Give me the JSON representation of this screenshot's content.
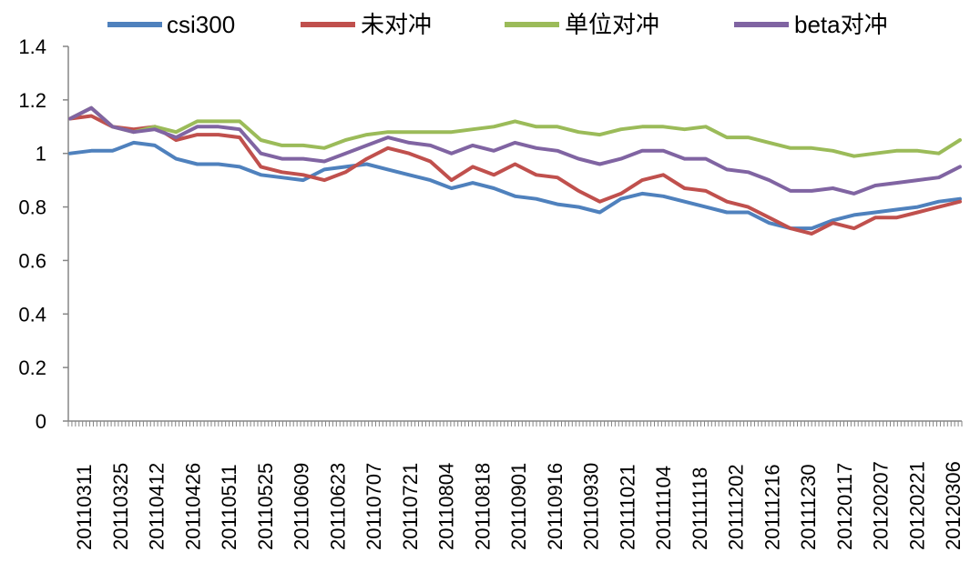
{
  "chart_data": {
    "type": "line",
    "x_tick_labels": [
      "20110311",
      "20110325",
      "20110412",
      "20110426",
      "20110511",
      "20110525",
      "20110609",
      "20110623",
      "20110707",
      "20110721",
      "20110804",
      "20110818",
      "20110901",
      "20110916",
      "20110930",
      "20111021",
      "20111104",
      "20111118",
      "20111202",
      "20111216",
      "20111230",
      "20120117",
      "20120207",
      "20120221",
      "20120306"
    ],
    "ylim": [
      0,
      1.4
    ],
    "y_ticks": [
      "0",
      "0.2",
      "0.4",
      "0.6",
      "0.8",
      "1",
      "1.2",
      "1.4"
    ],
    "legend_position": "top",
    "grid": false,
    "series": [
      {
        "name": "csi300",
        "color": "#4F81BD",
        "values": [
          1.0,
          1.01,
          1.01,
          1.04,
          1.03,
          0.98,
          0.96,
          0.96,
          0.95,
          0.92,
          0.91,
          0.9,
          0.94,
          0.95,
          0.96,
          0.94,
          0.92,
          0.9,
          0.87,
          0.89,
          0.87,
          0.84,
          0.83,
          0.81,
          0.8,
          0.78,
          0.83,
          0.85,
          0.84,
          0.82,
          0.8,
          0.78,
          0.78,
          0.74,
          0.72,
          0.72,
          0.75,
          0.77,
          0.78,
          0.79,
          0.8,
          0.82,
          0.83
        ]
      },
      {
        "name": "未对冲",
        "color": "#C0504D",
        "values": [
          1.13,
          1.14,
          1.1,
          1.09,
          1.1,
          1.05,
          1.07,
          1.07,
          1.06,
          0.95,
          0.93,
          0.92,
          0.9,
          0.93,
          0.98,
          1.02,
          1.0,
          0.97,
          0.9,
          0.95,
          0.92,
          0.96,
          0.92,
          0.91,
          0.86,
          0.82,
          0.85,
          0.9,
          0.92,
          0.87,
          0.86,
          0.82,
          0.8,
          0.76,
          0.72,
          0.7,
          0.74,
          0.72,
          0.76,
          0.76,
          0.78,
          0.8,
          0.82
        ]
      },
      {
        "name": "单位对冲",
        "color": "#9BBB59",
        "values": [
          1.13,
          1.17,
          1.1,
          1.08,
          1.1,
          1.08,
          1.12,
          1.12,
          1.12,
          1.05,
          1.03,
          1.03,
          1.02,
          1.05,
          1.07,
          1.08,
          1.08,
          1.08,
          1.08,
          1.09,
          1.1,
          1.12,
          1.1,
          1.1,
          1.08,
          1.07,
          1.09,
          1.1,
          1.1,
          1.09,
          1.1,
          1.06,
          1.06,
          1.04,
          1.02,
          1.02,
          1.01,
          0.99,
          1.0,
          1.01,
          1.01,
          1.0,
          1.05
        ]
      },
      {
        "name": "beta对冲",
        "color": "#8064A2",
        "values": [
          1.13,
          1.17,
          1.1,
          1.08,
          1.09,
          1.06,
          1.1,
          1.1,
          1.09,
          1.0,
          0.98,
          0.98,
          0.97,
          1.0,
          1.03,
          1.06,
          1.04,
          1.03,
          1.0,
          1.03,
          1.01,
          1.04,
          1.02,
          1.01,
          0.98,
          0.96,
          0.98,
          1.01,
          1.01,
          0.98,
          0.98,
          0.94,
          0.93,
          0.9,
          0.86,
          0.86,
          0.87,
          0.85,
          0.88,
          0.89,
          0.9,
          0.91,
          0.95
        ]
      }
    ]
  }
}
